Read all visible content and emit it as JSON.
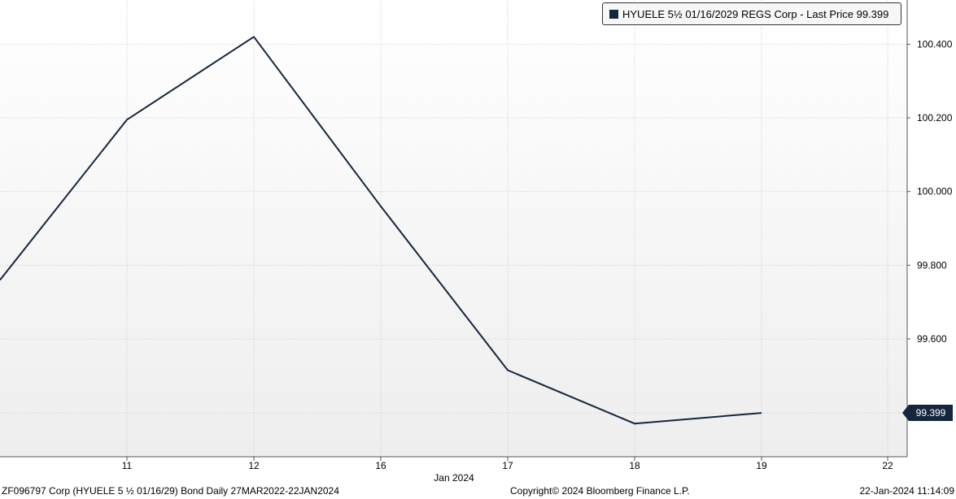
{
  "legend": {
    "label": "HYUELE 5½  01/16/2029 REGS Corp - Last Price 99.399",
    "color": "#15263f"
  },
  "price_tag": "99.399",
  "footer": {
    "left": "ZF096797 Corp (HYUELE 5 ½ 01/16/29) Bond  Daily 27MAR2022-22JAN2024",
    "center": "Copyright© 2024 Bloomberg Finance L.P.",
    "right": "22-Jan-2024 11:14:09"
  },
  "chart_data": {
    "type": "line",
    "title": "",
    "xlabel": "Jan 2024",
    "ylabel": "",
    "x": [
      "10",
      "11",
      "12",
      "16",
      "17",
      "18",
      "19"
    ],
    "series": [
      {
        "name": "HYUELE 5½  01/16/2029 REGS Corp - Last Price",
        "color": "#15263f",
        "values": [
          99.76,
          100.195,
          100.42,
          99.96,
          99.515,
          99.37,
          99.399
        ]
      }
    ],
    "x_tick_labels": [
      "11",
      "12",
      "16",
      "17",
      "18",
      "19",
      "22"
    ],
    "y_ticks": [
      "99.600",
      "99.800",
      "100.000",
      "100.200",
      "100.400"
    ],
    "ylim": [
      99.28,
      100.52
    ],
    "grid": true,
    "legend_position": "top-right"
  }
}
